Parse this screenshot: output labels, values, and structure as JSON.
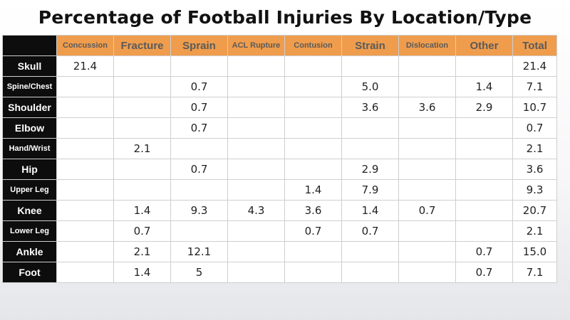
{
  "chart_data": {
    "type": "table",
    "title": "Percentage of Football Injuries By Location/Type",
    "columns": [
      "Concussion",
      "Fracture",
      "Sprain",
      "ACL Rupture",
      "Contusion",
      "Strain",
      "Dislocation",
      "Other",
      "Total"
    ],
    "rows": [
      {
        "label": "Skull",
        "cells": [
          "21.4",
          "",
          "",
          "",
          "",
          "",
          "",
          "",
          "21.4"
        ]
      },
      {
        "label": "Spine/Chest",
        "cells": [
          "",
          "",
          "0.7",
          "",
          "",
          "5.0",
          "",
          "1.4",
          "7.1"
        ]
      },
      {
        "label": "Shoulder",
        "cells": [
          "",
          "",
          "0.7",
          "",
          "",
          "3.6",
          "3.6",
          "2.9",
          "10.7"
        ]
      },
      {
        "label": "Elbow",
        "cells": [
          "",
          "",
          "0.7",
          "",
          "",
          "",
          "",
          "",
          "0.7"
        ]
      },
      {
        "label": "Hand/Wrist",
        "cells": [
          "",
          "2.1",
          "",
          "",
          "",
          "",
          "",
          "",
          "2.1"
        ]
      },
      {
        "label": "Hip",
        "cells": [
          "",
          "",
          "0.7",
          "",
          "",
          "2.9",
          "",
          "",
          "3.6"
        ]
      },
      {
        "label": "Upper Leg",
        "cells": [
          "",
          "",
          "",
          "",
          "1.4",
          "7.9",
          "",
          "",
          "9.3"
        ]
      },
      {
        "label": "Knee",
        "cells": [
          "",
          "1.4",
          "9.3",
          "4.3",
          "3.6",
          "1.4",
          "0.7",
          "",
          "20.7"
        ]
      },
      {
        "label": "Lower Leg",
        "cells": [
          "",
          "0.7",
          "",
          "",
          "0.7",
          "0.7",
          "",
          "",
          "2.1"
        ]
      },
      {
        "label": "Ankle",
        "cells": [
          "",
          "2.1",
          "12.1",
          "",
          "",
          "",
          "",
          "0.7",
          "15.0"
        ]
      },
      {
        "label": "Foot",
        "cells": [
          "",
          "1.4",
          "5",
          "",
          "",
          "",
          "",
          "0.7",
          "7.1"
        ]
      }
    ]
  },
  "colors": {
    "header_bg": "#ef9d4d",
    "header_text": "#5a5a5a",
    "row_header_bg": "#0d0d0d",
    "row_header_text": "#ffffff",
    "cell_bg": "#ffffff"
  }
}
